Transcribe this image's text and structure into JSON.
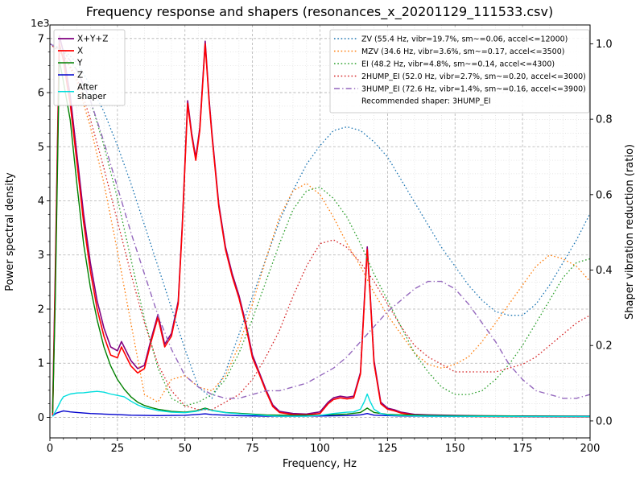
{
  "chart_data": {
    "type": "line",
    "title": "Frequency response and shapers (resonances_x_20201129_111533.csv)",
    "xlabel": "Frequency, Hz",
    "ylabel_left": "Power spectral density",
    "ylabel_right": "Shaper vibration reduction (ratio)",
    "offset_label": "1e3",
    "xlim": [
      0,
      200
    ],
    "ylim_left": [
      -380,
      7250
    ],
    "ylim_right": [
      -0.045,
      1.05
    ],
    "x_ticks": [
      0,
      25,
      50,
      75,
      100,
      125,
      150,
      175,
      200
    ],
    "x_minor_step": 5,
    "y_ticks_left": [
      0,
      1000,
      2000,
      3000,
      4000,
      5000,
      6000,
      7000
    ],
    "y_tick_labels_left": [
      "0",
      "1",
      "2",
      "3",
      "4",
      "5",
      "6",
      "7"
    ],
    "y_minor_step_left": 250,
    "y_ticks_right": [
      0,
      0.2,
      0.4,
      0.6,
      0.8,
      1.0
    ],
    "y_tick_labels_right": [
      "0.0",
      "0.2",
      "0.4",
      "0.6",
      "0.8",
      "1.0"
    ],
    "grid": "both",
    "legend_note": "Recommended shaper: 3HUMP_EI",
    "shaper_x": [
      0,
      5,
      10,
      15,
      20,
      25,
      30,
      35,
      40,
      45,
      50,
      55,
      60,
      65,
      70,
      75,
      80,
      85,
      90,
      95,
      100,
      105,
      110,
      115,
      120,
      125,
      130,
      135,
      140,
      145,
      150,
      155,
      160,
      165,
      170,
      175,
      180,
      185,
      190,
      195,
      200
    ],
    "series": [
      {
        "id": "xyz",
        "name": "X+Y+Z",
        "label": "X+Y+Z",
        "color": "#800080",
        "style": "solid",
        "width": 1.6,
        "axis": "left",
        "legend": "left",
        "x": [
          1,
          2,
          3.5,
          5,
          6.5,
          7.5,
          10,
          12.5,
          15,
          17.5,
          20,
          22.5,
          25,
          26.5,
          28,
          30,
          32.5,
          35,
          37.5,
          40,
          42.5,
          45,
          47.5,
          49,
          51,
          52.5,
          54,
          55.5,
          57.5,
          59,
          60,
          62.5,
          65,
          67.5,
          70,
          72.5,
          75,
          77.5,
          80,
          82.5,
          85,
          90,
          95,
          100,
          103,
          105,
          107.5,
          110,
          112.5,
          115,
          116.5,
          117.5,
          118.5,
          120,
          122.5,
          125,
          127.5,
          130,
          135,
          140,
          150,
          160,
          175,
          190,
          200
        ],
        "y": [
          150,
          2700,
          7050,
          6750,
          6250,
          5950,
          4850,
          3750,
          2850,
          2150,
          1650,
          1300,
          1230,
          1400,
          1250,
          1050,
          900,
          960,
          1450,
          1900,
          1350,
          1550,
          2150,
          3550,
          5850,
          5250,
          4800,
          5350,
          6950,
          5850,
          5250,
          3950,
          3150,
          2650,
          2250,
          1750,
          1150,
          830,
          510,
          230,
          110,
          70,
          60,
          100,
          280,
          360,
          390,
          370,
          390,
          830,
          2250,
          3150,
          2350,
          1050,
          280,
          170,
          140,
          95,
          55,
          45,
          35,
          28,
          25,
          22,
          20
        ]
      },
      {
        "id": "x",
        "name": "X",
        "label": "X",
        "color": "#ff0000",
        "style": "solid",
        "width": 1.6,
        "axis": "left",
        "legend": "left",
        "x": [
          1,
          2,
          3.5,
          5,
          6.5,
          7.5,
          10,
          12.5,
          15,
          17.5,
          20,
          22.5,
          25,
          26.5,
          28,
          30,
          32.5,
          35,
          37.5,
          40,
          42.5,
          45,
          47.5,
          49,
          51,
          52.5,
          54,
          55.5,
          57.5,
          59,
          60,
          62.5,
          65,
          67.5,
          70,
          72.5,
          75,
          77.5,
          80,
          82.5,
          85,
          90,
          95,
          100,
          103,
          105,
          107.5,
          110,
          112.5,
          115,
          116.5,
          117.5,
          118.5,
          120,
          122.5,
          125,
          127.5,
          130,
          135,
          140,
          150,
          160,
          175,
          190,
          200
        ],
        "y": [
          30,
          2500,
          6900,
          6600,
          6100,
          5800,
          4700,
          3600,
          2700,
          2000,
          1500,
          1150,
          1100,
          1300,
          1150,
          950,
          820,
          900,
          1400,
          1850,
          1300,
          1500,
          2100,
          3500,
          5800,
          5200,
          4750,
          5300,
          6900,
          5800,
          5200,
          3900,
          3100,
          2600,
          2200,
          1700,
          1100,
          800,
          480,
          200,
          90,
          50,
          45,
          70,
          250,
          330,
          360,
          340,
          360,
          800,
          2200,
          3100,
          2300,
          1000,
          250,
          150,
          120,
          80,
          40,
          30,
          20,
          15,
          12,
          10,
          10
        ]
      },
      {
        "id": "y",
        "name": "Y",
        "label": "Y",
        "color": "#008000",
        "style": "solid",
        "width": 1.4,
        "axis": "left",
        "legend": "left",
        "x": [
          1,
          2,
          3.5,
          5,
          7.5,
          10,
          12.5,
          15,
          17.5,
          20,
          22.5,
          25,
          27.5,
          30,
          32.5,
          35,
          37.5,
          40,
          45,
          50,
          54,
          57.5,
          60,
          65,
          70,
          75,
          80,
          90,
          100,
          110,
          115,
          117.5,
          120,
          125,
          130,
          140,
          150,
          160,
          175,
          190,
          200
        ],
        "y": [
          80,
          2200,
          6600,
          6200,
          5500,
          4300,
          3200,
          2400,
          1800,
          1300,
          950,
          700,
          520,
          380,
          280,
          220,
          180,
          150,
          110,
          95,
          120,
          170,
          130,
          90,
          75,
          60,
          45,
          35,
          40,
          60,
          90,
          170,
          90,
          55,
          45,
          35,
          30,
          28,
          25,
          22,
          20
        ]
      },
      {
        "id": "z",
        "name": "Z",
        "label": "Z",
        "color": "#0000cd",
        "style": "solid",
        "width": 1.4,
        "axis": "left",
        "legend": "left",
        "x": [
          1,
          2.5,
          5,
          7.5,
          10,
          15,
          20,
          25,
          30,
          40,
          50,
          55,
          57.5,
          60,
          70,
          80,
          90,
          100,
          110,
          115,
          117.5,
          120,
          130,
          140,
          160,
          180,
          200
        ],
        "y": [
          30,
          80,
          120,
          100,
          90,
          70,
          60,
          50,
          40,
          32,
          38,
          55,
          65,
          50,
          30,
          22,
          20,
          25,
          32,
          45,
          70,
          40,
          25,
          20,
          18,
          15,
          15
        ]
      },
      {
        "id": "after-shaper",
        "name": "After shaper",
        "label": "After shaper",
        "label_lines": [
          "After",
          "shaper"
        ],
        "color": "#00dddd",
        "style": "solid",
        "width": 1.4,
        "axis": "left",
        "legend": "left",
        "x": [
          1,
          2.5,
          4,
          5,
          7.5,
          10,
          12.5,
          15,
          17.5,
          20,
          22.5,
          25,
          27.5,
          30,
          32.5,
          35,
          40,
          45,
          50,
          54,
          57.5,
          60,
          65,
          70,
          75,
          80,
          85,
          90,
          95,
          100,
          105,
          110,
          112.5,
          115,
          116.5,
          117.5,
          118.5,
          120,
          122.5,
          125,
          130,
          140,
          150,
          175,
          200
        ],
        "y": [
          15,
          150,
          300,
          380,
          430,
          450,
          455,
          470,
          480,
          465,
          430,
          405,
          380,
          300,
          230,
          180,
          125,
          95,
          85,
          110,
          155,
          125,
          85,
          65,
          50,
          32,
          22,
          20,
          22,
          35,
          70,
          95,
          100,
          150,
          300,
          430,
          300,
          150,
          70,
          45,
          30,
          22,
          18,
          15,
          14
        ]
      },
      {
        "id": "zv",
        "name": "ZV",
        "label": "ZV (55.4 Hz, vibr=19.7%, sm~=0.06, accel<=12000)",
        "color": "#1f77b4",
        "style": "dotted",
        "width": 1.3,
        "axis": "right",
        "legend": "right",
        "y": [
          1.0,
          0.985,
          0.95,
          0.89,
          0.82,
          0.73,
          0.63,
          0.52,
          0.41,
          0.3,
          0.19,
          0.09,
          0.06,
          0.13,
          0.23,
          0.33,
          0.43,
          0.53,
          0.61,
          0.68,
          0.73,
          0.77,
          0.78,
          0.77,
          0.74,
          0.7,
          0.64,
          0.58,
          0.52,
          0.46,
          0.41,
          0.36,
          0.32,
          0.29,
          0.28,
          0.28,
          0.31,
          0.36,
          0.42,
          0.48,
          0.55
        ]
      },
      {
        "id": "mzv",
        "name": "MZV",
        "label": "MZV (34.6 Hz, vibr=3.6%, sm~=0.17, accel<=3500)",
        "color": "#ff7f0e",
        "style": "dotted",
        "width": 1.3,
        "axis": "right",
        "legend": "right",
        "y": [
          1.0,
          0.97,
          0.9,
          0.78,
          0.63,
          0.45,
          0.26,
          0.07,
          0.05,
          0.11,
          0.12,
          0.09,
          0.08,
          0.12,
          0.2,
          0.31,
          0.43,
          0.54,
          0.61,
          0.63,
          0.6,
          0.54,
          0.47,
          0.41,
          0.34,
          0.28,
          0.23,
          0.18,
          0.15,
          0.14,
          0.15,
          0.17,
          0.21,
          0.26,
          0.31,
          0.36,
          0.41,
          0.44,
          0.43,
          0.41,
          0.37
        ]
      },
      {
        "id": "ei",
        "name": "EI",
        "label": "EI (48.2 Hz, vibr=4.8%, sm~=0.14, accel<=4300)",
        "color": "#2ca02c",
        "style": "dotted",
        "width": 1.3,
        "axis": "right",
        "legend": "right",
        "y": [
          1.0,
          0.98,
          0.93,
          0.85,
          0.73,
          0.59,
          0.43,
          0.27,
          0.14,
          0.06,
          0.04,
          0.05,
          0.07,
          0.11,
          0.18,
          0.27,
          0.37,
          0.47,
          0.56,
          0.61,
          0.62,
          0.59,
          0.54,
          0.47,
          0.39,
          0.32,
          0.25,
          0.18,
          0.13,
          0.09,
          0.07,
          0.07,
          0.08,
          0.11,
          0.15,
          0.2,
          0.26,
          0.32,
          0.38,
          0.42,
          0.43
        ]
      },
      {
        "id": "2hump_ei",
        "name": "2HUMP_EI",
        "label": "2HUMP_EI (52.0 Hz, vibr=2.7%, sm~=0.20, accel<=3000)",
        "color": "#d62728",
        "style": "dotted",
        "width": 1.3,
        "axis": "right",
        "legend": "right",
        "y": [
          1.0,
          0.97,
          0.91,
          0.8,
          0.67,
          0.53,
          0.39,
          0.26,
          0.15,
          0.08,
          0.04,
          0.03,
          0.03,
          0.05,
          0.07,
          0.11,
          0.17,
          0.24,
          0.33,
          0.41,
          0.47,
          0.48,
          0.46,
          0.42,
          0.37,
          0.31,
          0.25,
          0.2,
          0.17,
          0.15,
          0.13,
          0.13,
          0.13,
          0.13,
          0.14,
          0.15,
          0.17,
          0.2,
          0.23,
          0.26,
          0.28
        ]
      },
      {
        "id": "3hump_ei",
        "name": "3HUMP_EI",
        "label": "3HUMP_EI (72.6 Hz, vibr=1.4%, sm~=0.16, accel<=3900)",
        "color": "#9467bd",
        "style": "dashdot",
        "width": 1.4,
        "axis": "right",
        "legend": "right",
        "y": [
          1.0,
          0.98,
          0.93,
          0.85,
          0.74,
          0.62,
          0.5,
          0.39,
          0.28,
          0.19,
          0.12,
          0.09,
          0.07,
          0.06,
          0.06,
          0.07,
          0.08,
          0.08,
          0.09,
          0.1,
          0.12,
          0.14,
          0.17,
          0.21,
          0.25,
          0.29,
          0.32,
          0.35,
          0.37,
          0.37,
          0.35,
          0.31,
          0.26,
          0.21,
          0.15,
          0.11,
          0.08,
          0.07,
          0.06,
          0.06,
          0.07
        ]
      }
    ]
  }
}
